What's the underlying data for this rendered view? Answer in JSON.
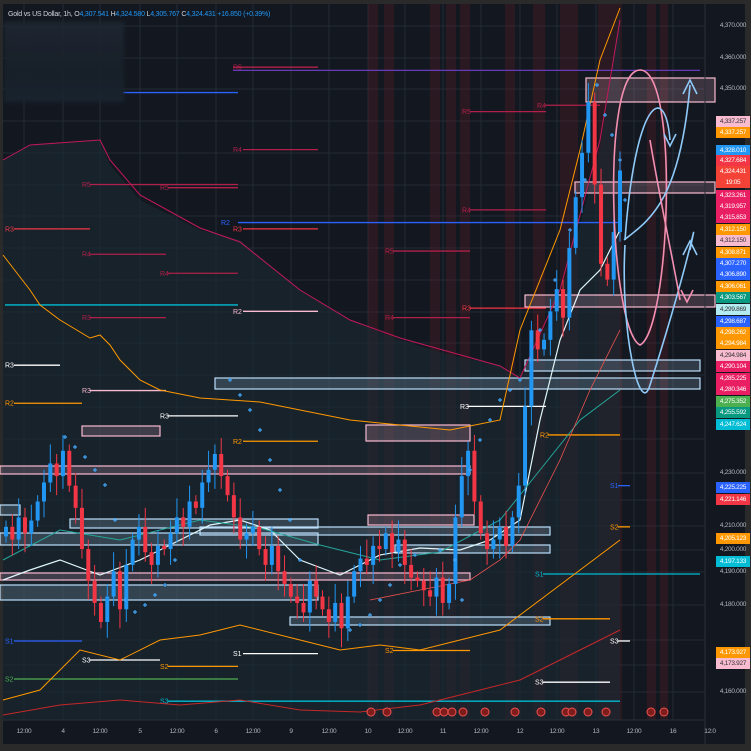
{
  "legend": {
    "symbol": "Gold vs US Dollar, 1h,",
    "open_label": "O",
    "open": "4,307.541",
    "high_label": "H",
    "high": "4,324.580",
    "low_label": "L",
    "low": "4,305.767",
    "close_label": "C",
    "close": "4,324.431",
    "change": "+16.850 (+0.39%)"
  },
  "colors": {
    "up": "#2196f3",
    "down": "#f23645",
    "background": "#131820",
    "grid": "#262c36"
  },
  "price_badges": [
    {
      "value": "4,337.257",
      "color": "#f8bbd0",
      "text": "#333"
    },
    {
      "value": "4,337.257",
      "color": "#ff9800",
      "text": "#fff"
    },
    {
      "value": "4,328.010",
      "color": "#2196f3",
      "text": "#fff"
    },
    {
      "value": "4,327.684",
      "color": "#f23645",
      "text": "#fff"
    },
    {
      "value": "4,324.431",
      "color": "#f44336",
      "text": "#fff",
      "countdown": "19:05"
    },
    {
      "value": "4,323.261",
      "color": "#e91e63",
      "text": "#fff"
    },
    {
      "value": "4,319.957",
      "color": "#e91e63",
      "text": "#fff"
    },
    {
      "value": "4,315.853",
      "color": "#e91e63",
      "text": "#fff"
    },
    {
      "value": "4,312.150",
      "color": "#ff9800",
      "text": "#fff"
    },
    {
      "value": "4,312.150",
      "color": "#f8bbd0",
      "text": "#333"
    },
    {
      "value": "4,308.871",
      "color": "#ff9800",
      "text": "#fff"
    },
    {
      "value": "4,307.270",
      "color": "#2962ff",
      "text": "#fff"
    },
    {
      "value": "4,306.890",
      "color": "#2962ff",
      "text": "#fff"
    },
    {
      "value": "4,306.061",
      "color": "#ff9800",
      "text": "#fff"
    },
    {
      "value": "4,303.567",
      "color": "#089981",
      "text": "#fff"
    },
    {
      "value": "4,299.869",
      "color": "#b2ebf2",
      "text": "#333"
    },
    {
      "value": "4,298.687",
      "color": "#2962ff",
      "text": "#fff"
    },
    {
      "value": "4,298.262",
      "color": "#ff9800",
      "text": "#fff"
    },
    {
      "value": "4,294.984",
      "color": "#ff9800",
      "text": "#fff"
    },
    {
      "value": "4,294.984",
      "color": "#f8bbd0",
      "text": "#333"
    },
    {
      "value": "4,290.104",
      "color": "#e91e63",
      "text": "#fff"
    },
    {
      "value": "4,285.225",
      "color": "#e91e63",
      "text": "#fff"
    },
    {
      "value": "4,280.346",
      "color": "#e91e63",
      "text": "#fff"
    },
    {
      "value": "4,275.352",
      "color": "#4caf50",
      "text": "#fff"
    },
    {
      "value": "4,255.592",
      "color": "#089981",
      "text": "#fff"
    },
    {
      "value": "4,247.624",
      "color": "#00bcd4",
      "text": "#fff"
    },
    {
      "value": "4,225.225",
      "color": "#2962ff",
      "text": "#fff"
    },
    {
      "value": "4,221.146",
      "color": "#f23645",
      "text": "#fff"
    },
    {
      "value": "4,205.123",
      "color": "#ff9800",
      "text": "#fff"
    },
    {
      "value": "4,197.133",
      "color": "#00bcd4",
      "text": "#fff"
    },
    {
      "value": "4,173.927",
      "color": "#ff9800",
      "text": "#fff"
    },
    {
      "value": "4,173.927",
      "color": "#f8bbd0",
      "text": "#333"
    }
  ],
  "chart_data": {
    "type": "candlestick",
    "title": "Gold vs US Dollar, 1h",
    "y_ticks": [
      "4,370.000",
      "4,360.000",
      "4,350.000",
      "4,230.000",
      "4,210.000",
      "4,200.000",
      "4,190.000",
      "4,180.000",
      "4,160.000"
    ],
    "y_tick_values": [
      4370,
      4360,
      4350,
      4230,
      4210,
      4200,
      4190,
      4180,
      4160
    ],
    "ylim": [
      4155,
      4375
    ],
    "x_ticks": [
      "12:00",
      "4",
      "12:00",
      "5",
      "12:00",
      "6",
      "12:00",
      "9",
      "12:00",
      "10",
      "12:00",
      "11",
      "12:00",
      "12",
      "12:00",
      "13",
      "12:00",
      "16",
      "12:0"
    ],
    "closes": [
      4212,
      4208,
      4215,
      4210,
      4214,
      4220,
      4226,
      4232,
      4228,
      4236,
      4225,
      4218,
      4205,
      4195,
      4188,
      4182,
      4190,
      4198,
      4186,
      4200,
      4208,
      4212,
      4204,
      4200,
      4206,
      4205,
      4210,
      4215,
      4212,
      4220,
      4218,
      4226,
      4230,
      4235,
      4228,
      4222,
      4215,
      4208,
      4210,
      4212,
      4205,
      4200,
      4206,
      4198,
      4194,
      4190,
      4188,
      4185,
      4195,
      4190,
      4186,
      4182,
      4188,
      4180,
      4190,
      4198,
      4202,
      4200,
      4206,
      4205,
      4210,
      4204,
      4208,
      4200,
      4196,
      4195,
      4192,
      4190,
      4196,
      4188,
      4194,
      4215,
      4228,
      4236,
      4220,
      4210,
      4205,
      4208,
      4212,
      4206,
      4215,
      4225,
      4250,
      4274,
      4268,
      4271,
      4280,
      4287,
      4278,
      4300,
      4316,
      4330,
      4346,
      4320,
      4295,
      4290,
      4305,
      4324.431
    ],
    "grid": true,
    "levels": [
      {
        "label": "R5",
        "price": 4357,
        "color": "#b0204a"
      },
      {
        "label": "",
        "price": 4356,
        "color": "#673ab7"
      },
      {
        "label": "",
        "price": 4349,
        "color": "#2962ff"
      },
      {
        "label": "R4",
        "price": 4331,
        "color": "#b0204a"
      },
      {
        "label": "R5",
        "price": 4320,
        "color": "#b0204a"
      },
      {
        "label": "R5",
        "price": 4319,
        "color": "#b0204a"
      },
      {
        "label": "R3",
        "price": 4306,
        "color": "#f23645"
      },
      {
        "label": "R2",
        "price": 4308,
        "color": "#2962ff"
      },
      {
        "label": "R3",
        "price": 4306,
        "color": "#f23645"
      },
      {
        "label": "R4",
        "price": 4298,
        "color": "#b0204a"
      },
      {
        "label": "R4",
        "price": 4292,
        "color": "#b0204a"
      },
      {
        "label": "",
        "price": 4282,
        "color": "#00bcd4"
      },
      {
        "label": "R2",
        "price": 4280,
        "color": "#f8bbd0"
      },
      {
        "label": "R3",
        "price": 4278,
        "color": "#b0204a"
      },
      {
        "label": "R5",
        "price": 4343,
        "color": "#b0204a"
      },
      {
        "label": "R4",
        "price": 4345,
        "color": "#b0204a"
      },
      {
        "label": "R4",
        "price": 4312,
        "color": "#b0204a"
      },
      {
        "label": "R5",
        "price": 4299,
        "color": "#b0204a"
      },
      {
        "label": "R4",
        "price": 4278,
        "color": "#b0204a"
      },
      {
        "label": "R3",
        "price": 4281,
        "color": "#f23645"
      },
      {
        "label": "R3",
        "price": 4263,
        "color": "#ffffff"
      },
      {
        "label": "R3",
        "price": 4255,
        "color": "#f8bbd0"
      },
      {
        "label": "R2",
        "price": 4251,
        "color": "#ff9800"
      },
      {
        "label": "R3",
        "price": 4247,
        "color": "#ffffff"
      },
      {
        "label": "R2",
        "price": 4239,
        "color": "#ff9800"
      },
      {
        "label": "R2",
        "price": 4241,
        "color": "#ff9800"
      },
      {
        "label": "R3",
        "price": 4250,
        "color": "#ffffff"
      },
      {
        "label": "S1",
        "price": 4225,
        "color": "#2962ff"
      },
      {
        "label": "S2",
        "price": 4212,
        "color": "#ff9800"
      },
      {
        "label": "S1",
        "price": 4197.133,
        "color": "#00bcd4"
      },
      {
        "label": "S2",
        "price": 4183,
        "color": "#ff9800"
      },
      {
        "label": "S3",
        "price": 4176,
        "color": "#ffffff"
      },
      {
        "label": "S3",
        "price": 4163,
        "color": "#ffffff"
      },
      {
        "label": "S2",
        "price": 4164,
        "color": "#4caf50"
      },
      {
        "label": "S3",
        "price": 4170,
        "color": "#ffffff"
      },
      {
        "label": "S1",
        "price": 4176,
        "color": "#2962ff"
      },
      {
        "label": "S2",
        "price": 4168,
        "color": "#ff9800"
      },
      {
        "label": "S1",
        "price": 4172,
        "color": "#ffffff"
      },
      {
        "label": "S2",
        "price": 4173,
        "color": "#ff9800"
      },
      {
        "label": "S3",
        "price": 4157,
        "color": "#00bcd4"
      }
    ]
  }
}
